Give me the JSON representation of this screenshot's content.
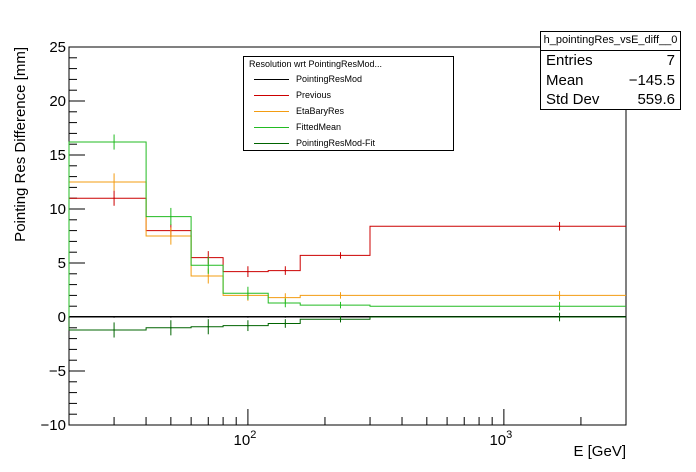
{
  "chart_data": {
    "type": "line",
    "stats": {
      "title": "h_pointingRes_vsE_diff__0",
      "rows": [
        {
          "label": "Entries",
          "value": "7"
        },
        {
          "label": "Mean",
          "value": "−145.5"
        },
        {
          "label": "Std Dev",
          "value": "559.6"
        }
      ]
    },
    "legend_header": "Resolution wrt PointingResMod...",
    "xlabel": "E [GeV]",
    "ylabel": "Pointing Res Difference [mm]",
    "xscale": "log",
    "xlim": [
      20,
      3000
    ],
    "ylim": [
      -10,
      25
    ],
    "y_ticks": [
      -10,
      -5,
      0,
      5,
      10,
      15,
      20,
      25
    ],
    "x_major_ticks": [
      {
        "value": 100,
        "base": "10",
        "exp": "2"
      },
      {
        "value": 1000,
        "base": "10",
        "exp": "3"
      }
    ],
    "bin_edges": [
      20,
      40,
      60,
      80,
      120,
      160,
      300,
      3000
    ],
    "bin_centers": [
      30,
      50,
      70,
      100,
      140,
      230,
      1650
    ],
    "series": [
      {
        "name": "PointingResMod",
        "color": "#000000",
        "values": [
          0,
          0,
          0,
          0,
          0,
          0,
          0
        ],
        "errors": [
          0,
          0,
          0,
          0,
          0,
          0,
          0
        ]
      },
      {
        "name": "Previous",
        "color": "#cc0000",
        "values": [
          11.0,
          8.0,
          5.5,
          4.2,
          4.3,
          5.7,
          8.4
        ],
        "errors": [
          0.7,
          0.6,
          0.6,
          0.5,
          0.4,
          0.3,
          0.4
        ]
      },
      {
        "name": "EtaBaryRes",
        "color": "#f39c12",
        "values": [
          12.5,
          7.5,
          3.8,
          2.0,
          1.8,
          2.0,
          2.0
        ],
        "errors": [
          0.8,
          0.8,
          0.7,
          0.5,
          0.4,
          0.3,
          0.4
        ]
      },
      {
        "name": "FittedMean",
        "color": "#22bb22",
        "values": [
          16.2,
          9.3,
          4.8,
          2.2,
          1.3,
          1.1,
          1.0
        ],
        "errors": [
          0.7,
          0.8,
          0.8,
          0.6,
          0.4,
          0.3,
          0.4
        ]
      },
      {
        "name": "PointingResMod-Fit",
        "color": "#006400",
        "values": [
          -1.2,
          -1.0,
          -0.9,
          -0.8,
          -0.6,
          -0.2,
          0.0
        ],
        "errors": [
          0.7,
          0.7,
          0.7,
          0.5,
          0.4,
          0.3,
          0.4
        ]
      }
    ]
  }
}
